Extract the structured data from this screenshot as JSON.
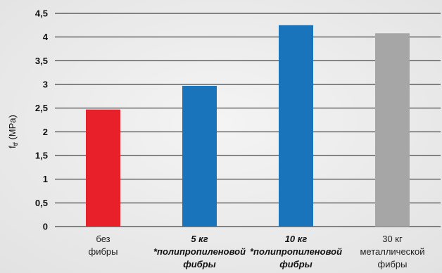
{
  "chart_data": {
    "type": "bar",
    "ylabel": "f",
    "ylabel_sub": "tf",
    "ylabel_unit": " (MPa)",
    "ylim": [
      0,
      4.5
    ],
    "yticks": [
      "0",
      "0,5",
      "1",
      "1,5",
      "2",
      "2,5",
      "3",
      "3,5",
      "4",
      "4,5"
    ],
    "grid": true,
    "categories": [
      {
        "lines": [
          "без",
          "фибры"
        ],
        "bold": false
      },
      {
        "lines": [
          "5 кг",
          "*полипропиленовой",
          "фибры"
        ],
        "bold": true
      },
      {
        "lines": [
          "10 кг",
          "*полипропиленовой",
          "фибры"
        ],
        "bold": true
      },
      {
        "lines": [
          "30 кг",
          "металлической",
          "фибры"
        ],
        "bold": false
      }
    ],
    "values": [
      2.47,
      2.97,
      4.25,
      4.08
    ],
    "colors": [
      "#e8202a",
      "#1a74bc",
      "#1a74bc",
      "#a6a6a6"
    ]
  }
}
